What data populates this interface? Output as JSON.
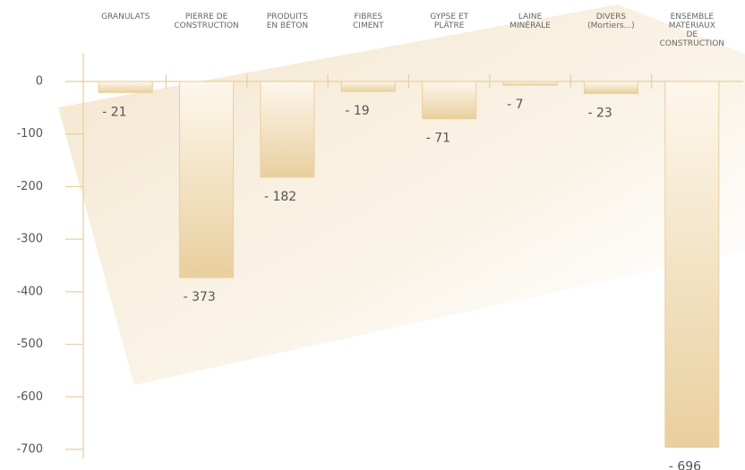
{
  "chart_data": {
    "type": "bar",
    "categories": [
      [
        "GRANULATS"
      ],
      [
        "PIERRE DE",
        "CONSTRUCTION"
      ],
      [
        "PRODUITS",
        "EN  BÉTON"
      ],
      [
        "FIBRES",
        "CIMENT"
      ],
      [
        "GYPSE  ET",
        "PLÂTRE"
      ],
      [
        "LAINE",
        "MINÉRALE"
      ],
      [
        "DIVERS",
        "(Mortiers...)"
      ],
      [
        "ENSEMBLE",
        "MATÉRIAUX",
        "DE",
        "CONSTRUCTION"
      ]
    ],
    "values": [
      -21,
      -373,
      -182,
      -19,
      -71,
      -7,
      -23,
      -696
    ],
    "value_labels": [
      "- 21",
      "- 373",
      "- 182",
      "- 19",
      "- 71",
      "- 7",
      "- 23",
      "- 696"
    ],
    "color": "#e9cf9e",
    "ylim": [
      -700,
      0
    ],
    "yticks": [
      0,
      -100,
      -200,
      -300,
      -400,
      -500,
      -600,
      -700
    ]
  }
}
